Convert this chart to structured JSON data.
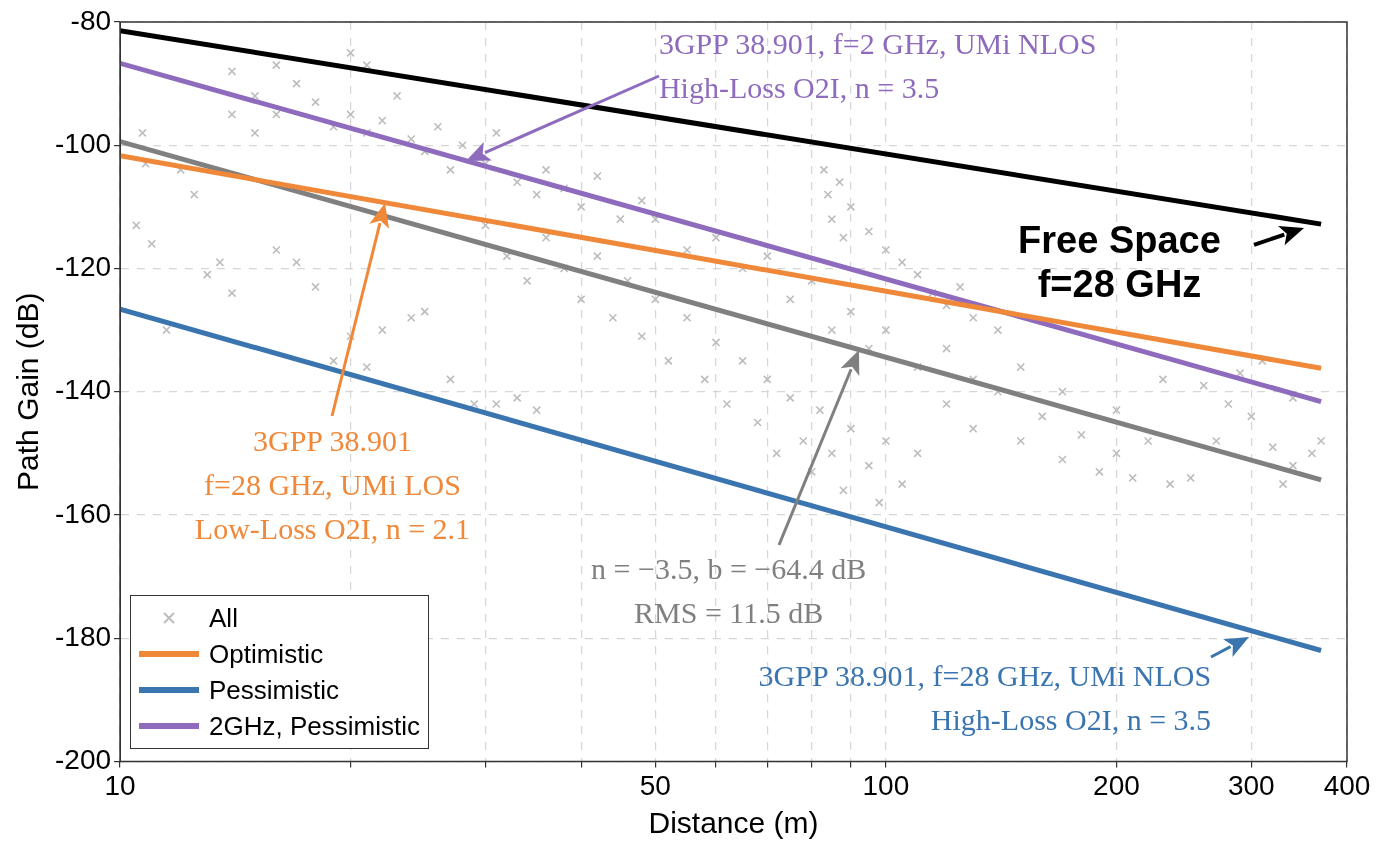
{
  "chart_data": {
    "type": "scatter",
    "xlabel": "Distance (m)",
    "ylabel": "Path Gain (dB)",
    "log": "x",
    "grid": true,
    "legend": "bottom left",
    "line_style": "solid",
    "xlim": [
      10,
      400
    ],
    "ylim": [
      -200,
      -80
    ],
    "xticks": [
      10,
      {
        "value": 20,
        "label": null
      },
      {
        "value": 30,
        "label": null
      },
      {
        "value": 40,
        "label": null
      },
      50,
      {
        "value": 60,
        "label": null
      },
      {
        "value": 70,
        "label": null
      },
      {
        "value": 80,
        "label": null
      },
      {
        "value": 90,
        "label": null
      },
      100,
      200,
      300,
      400
    ],
    "yticks": [
      -200,
      -180,
      -160,
      -140,
      -120,
      -100,
      -80
    ],
    "series": [
      {
        "name": "All",
        "marker": "cross",
        "color": "#bdbdbd",
        "x": [
          10.5,
          10.7,
          10.8,
          11,
          11.5,
          12,
          12.5,
          13,
          13.5,
          14,
          16,
          17,
          18,
          19,
          20,
          21,
          22,
          24,
          25,
          27,
          29,
          31,
          33,
          35,
          14,
          14,
          15,
          15,
          16,
          16,
          17,
          18,
          19,
          20,
          21,
          22,
          23,
          24,
          25,
          26,
          27,
          28,
          30,
          31,
          33,
          35,
          36,
          38,
          40,
          42,
          45,
          48,
          20,
          21,
          30,
          32,
          34,
          36,
          38,
          40,
          42,
          44,
          46,
          48,
          50,
          52,
          55,
          58,
          60,
          62,
          65,
          68,
          70,
          72,
          75,
          78,
          80,
          82,
          85,
          88,
          90,
          95,
          98,
          100,
          105,
          110,
          50,
          55,
          60,
          65,
          70,
          75,
          80,
          85,
          90,
          95,
          100,
          110,
          120,
          130,
          83,
          84,
          85,
          87,
          88,
          90,
          95,
          100,
          105,
          110,
          115,
          120,
          125,
          130,
          140,
          120,
          130,
          140,
          150,
          160,
          170,
          180,
          190,
          200,
          210,
          220,
          235,
          250,
          150,
          170,
          200,
          230,
          260,
          280,
          300,
          320,
          340,
          360,
          370,
          310,
          290,
          340,
          270,
          330
        ],
        "values": [
          -113,
          -98,
          -103,
          -116,
          -130,
          -104,
          -108,
          -121,
          -119,
          -124,
          -117,
          -119,
          -123,
          -135,
          -131,
          -136,
          -130,
          -128,
          -127,
          -138,
          -142,
          -142,
          -141,
          -143,
          -88,
          -95,
          -92,
          -98,
          -87,
          -95,
          -90,
          -93,
          -97,
          -95,
          -98,
          -96,
          -92,
          -99,
          -101,
          -97,
          -104,
          -100,
          -103,
          -98,
          -106,
          -108,
          -104,
          -107,
          -110,
          -105,
          -112,
          -109,
          -85,
          -87,
          -113,
          -118,
          -122,
          -115,
          -120,
          -125,
          -118,
          -128,
          -122,
          -131,
          -125,
          -135,
          -128,
          -138,
          -132,
          -142,
          -135,
          -145,
          -138,
          -150,
          -141,
          -148,
          -153,
          -143,
          -150,
          -156,
          -146,
          -152,
          -158,
          -148,
          -155,
          -150,
          -112,
          -117,
          -115,
          -120,
          -118,
          -125,
          -122,
          -130,
          -127,
          -133,
          -130,
          -136,
          -133,
          -138,
          -104,
          -108,
          -112,
          -106,
          -115,
          -110,
          -114,
          -117,
          -119,
          -121,
          -124,
          -126,
          -123,
          -128,
          -130,
          -142,
          -146,
          -140,
          -148,
          -144,
          -151,
          -147,
          -153,
          -150,
          -154,
          -148,
          -155,
          -154,
          -136,
          -140,
          -143,
          -138,
          -139,
          -142,
          -144,
          -149,
          -152,
          -150,
          -148,
          -135,
          -137,
          -141,
          -148,
          -155
        ]
      },
      {
        "name": "Optimistic",
        "type": "line",
        "color": "#f0883a",
        "x": [
          10,
          370
        ],
        "values": [
          -101.7,
          -136.2
        ]
      },
      {
        "name": "Pessimistic",
        "type": "line",
        "color": "#3b75b0",
        "x": [
          10,
          370
        ],
        "values": [
          -126.6,
          -182.0
        ]
      },
      {
        "name": "2GHz, Pessimistic",
        "type": "line",
        "color": "#8e6bbd",
        "x": [
          10,
          370
        ],
        "values": [
          -86.7,
          -141.6
        ]
      },
      {
        "type": "line",
        "color": "#000000",
        "x": [
          10,
          370
        ],
        "values": [
          -81.4,
          -112.8
        ]
      },
      {
        "type": "line",
        "color": "#808080",
        "x": [
          10,
          370
        ],
        "values": [
          -99.4,
          -154.3
        ]
      }
    ],
    "annotations": [
      "3GPP 38.901, f=2 GHz, UMi NLOS\nHigh-Loss O2I, n = 3.5",
      {
        "text": "Free Space\nf=28 GHz",
        "x": 352,
        "y": -113.4
      },
      "3GPP 38.901\nf=28 GHz, UMi LOS\nLow-Loss O2I, n = 2.1",
      "n = −3.5, b = −64.4 dB\nRMS = 11.5 dB",
      {
        "text": "3GPP 38.901, f=28 GHz, UMi NLOS\nHigh-Loss O2I, n = 3.5",
        "x": 298,
        "y": -179.8
      }
    ]
  }
}
